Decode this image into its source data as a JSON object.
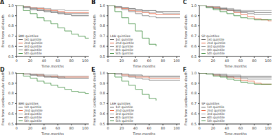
{
  "chart_data": [
    {
      "type": "line",
      "title": "A",
      "x_label": "Time,months",
      "y_label": "Free from all-death",
      "legend_title": "BMI quintiles",
      "legend": "lower left",
      "x": [
        0,
        10,
        20,
        30,
        40,
        50,
        60,
        70,
        80,
        90,
        100,
        105
      ],
      "xlim": [
        0,
        105
      ],
      "xticks": [
        0,
        20,
        40,
        60,
        80,
        100
      ],
      "ylim": [
        0.5,
        1.0
      ],
      "yticks": [
        0.5,
        0.6,
        0.7,
        0.8,
        0.9,
        {
          "value": 1.0,
          "label": "1.0"
        }
      ],
      "series": [
        {
          "name": "1st quintile",
          "color": "#555555",
          "values": [
            1,
            0.98,
            0.96,
            0.95,
            0.94,
            0.93,
            0.92,
            0.91,
            0.9,
            0.9,
            0.9,
            0.9
          ]
        },
        {
          "name": "2nd quintile",
          "color": "#e8603c",
          "values": [
            1,
            0.99,
            0.98,
            0.97,
            0.96,
            0.95,
            0.94,
            0.93,
            0.93,
            0.93,
            0.93,
            0.93
          ]
        },
        {
          "name": "3rd quintile",
          "color": "#a0a0a0",
          "values": [
            1,
            0.99,
            0.98,
            0.98,
            0.97,
            0.96,
            0.96,
            0.95,
            0.95,
            0.95,
            0.95,
            0.95
          ]
        },
        {
          "name": "4th quintile",
          "color": "#7a7a7a",
          "values": [
            1,
            0.98,
            0.97,
            0.96,
            0.95,
            0.94,
            0.93,
            0.92,
            0.92,
            0.92,
            0.92,
            0.92
          ]
        },
        {
          "name": "5th quintile",
          "color": "#3a8a3a",
          "values": [
            1,
            0.95,
            0.92,
            0.88,
            0.85,
            0.82,
            0.78,
            0.75,
            0.72,
            0.7,
            0.68,
            0.68
          ]
        }
      ]
    },
    {
      "type": "line",
      "title": "B",
      "x_label": "Time,months",
      "y_label": "Free from all-death",
      "legend_title": "LAH quintiles",
      "legend": "lower left",
      "x": [
        0,
        10,
        20,
        30,
        40,
        50,
        60,
        70,
        80,
        90,
        100,
        105
      ],
      "xlim": [
        0,
        105
      ],
      "xticks": [
        0,
        20,
        40,
        60,
        80,
        100
      ],
      "ylim": [
        0.5,
        1.0
      ],
      "yticks": [
        0.5,
        0.6,
        0.7,
        0.8,
        0.9,
        {
          "value": 1.0,
          "label": "1.0"
        }
      ],
      "series": [
        {
          "name": "1st quintile",
          "color": "#555555",
          "values": [
            1,
            0.99,
            0.98,
            0.97,
            0.96,
            0.95,
            0.95,
            0.94,
            0.94,
            0.94,
            0.94,
            0.94
          ]
        },
        {
          "name": "2nd quintile",
          "color": "#e8603c",
          "values": [
            1,
            0.98,
            0.97,
            0.95,
            0.94,
            0.93,
            0.92,
            0.91,
            0.91,
            0.91,
            0.91,
            0.91
          ]
        },
        {
          "name": "3rd quintile",
          "color": "#a0a0a0",
          "values": [
            1,
            0.99,
            0.98,
            0.96,
            0.95,
            0.94,
            0.93,
            0.93,
            0.92,
            0.92,
            0.92,
            0.92
          ]
        },
        {
          "name": "4th quintile",
          "color": "#7a7a7a",
          "values": [
            1,
            0.98,
            0.96,
            0.94,
            0.92,
            0.9,
            0.89,
            0.88,
            0.88,
            0.88,
            0.88,
            0.88
          ]
        },
        {
          "name": "5th quintile",
          "color": "#3a8a3a",
          "values": [
            1,
            0.94,
            0.88,
            0.82,
            0.75,
            0.68,
            0.62,
            0.6,
            null,
            null,
            null,
            null
          ]
        }
      ]
    },
    {
      "type": "line",
      "title": "C",
      "x_label": "Time,months",
      "y_label": "Free from all-death",
      "legend_title": "SP quintiles",
      "legend": "lower left",
      "x": [
        0,
        10,
        20,
        30,
        40,
        50,
        60,
        70,
        80,
        90,
        100,
        105
      ],
      "xlim": [
        0,
        105
      ],
      "xticks": [
        0,
        20,
        40,
        60,
        80,
        100
      ],
      "ylim": [
        0.5,
        1.0
      ],
      "yticks": [
        0.5,
        0.6,
        0.7,
        0.8,
        0.9,
        {
          "value": 1.0,
          "label": "1.0"
        }
      ],
      "series": [
        {
          "name": "1st quintile",
          "color": "#555555",
          "values": [
            1,
            0.99,
            0.98,
            0.97,
            0.96,
            0.95,
            0.94,
            0.94,
            0.93,
            0.93,
            0.93,
            0.93
          ]
        },
        {
          "name": "2nd quintile",
          "color": "#e8603c",
          "values": [
            1,
            0.99,
            0.98,
            0.96,
            0.95,
            0.93,
            0.91,
            0.89,
            0.87,
            0.86,
            0.85,
            0.85
          ]
        },
        {
          "name": "3rd quintile",
          "color": "#a0a0a0",
          "values": [
            1,
            0.99,
            0.99,
            0.98,
            0.97,
            0.96,
            0.95,
            0.95,
            0.95,
            0.95,
            0.95,
            0.95
          ]
        },
        {
          "name": "4th quintile",
          "color": "#7a7a7a",
          "values": [
            1,
            0.98,
            0.97,
            0.96,
            0.95,
            0.94,
            0.93,
            0.92,
            0.91,
            0.91,
            0.91,
            0.91
          ]
        },
        {
          "name": "5th quintile",
          "color": "#3a8a3a",
          "values": [
            1,
            0.98,
            0.96,
            0.94,
            0.92,
            0.9,
            0.88,
            0.87,
            0.86,
            0.86,
            0.86,
            0.86
          ]
        }
      ]
    },
    {
      "type": "line",
      "title": "D",
      "x_label": "Time,months",
      "y_label": "Free from cardiovascular death",
      "legend_title": "BMI quintiles",
      "legend": "lower left",
      "x": [
        0,
        10,
        20,
        30,
        40,
        50,
        60,
        70,
        80,
        90,
        100,
        105
      ],
      "xlim": [
        0,
        105
      ],
      "xticks": [
        0,
        20,
        40,
        60,
        80,
        100
      ],
      "ylim": [
        0.5,
        1.0
      ],
      "yticks": [
        0.5,
        0.6,
        0.7,
        0.8,
        0.9,
        {
          "value": 1.0,
          "label": "1.0"
        }
      ],
      "series": [
        {
          "name": "1st quintile",
          "color": "#555555",
          "values": [
            1,
            0.99,
            0.98,
            0.97,
            0.96,
            0.96,
            0.95,
            0.95,
            0.95,
            0.95,
            0.95,
            0.95
          ]
        },
        {
          "name": "2nd quintile",
          "color": "#e8603c",
          "values": [
            1,
            0.99,
            0.99,
            0.98,
            0.97,
            0.97,
            0.96,
            0.96,
            0.96,
            0.96,
            0.96,
            0.96
          ]
        },
        {
          "name": "3rd quintile",
          "color": "#a0a0a0",
          "values": [
            1,
            1,
            0.99,
            0.99,
            0.98,
            0.98,
            0.97,
            0.97,
            0.97,
            0.97,
            0.97,
            0.97
          ]
        },
        {
          "name": "4th quintile",
          "color": "#7a7a7a",
          "values": [
            1,
            0.99,
            0.98,
            0.98,
            0.97,
            0.96,
            0.96,
            0.95,
            0.95,
            0.95,
            0.95,
            0.95
          ]
        },
        {
          "name": "5th quintile",
          "color": "#3a8a3a",
          "values": [
            1,
            0.97,
            0.95,
            0.92,
            0.9,
            0.88,
            0.86,
            0.84,
            0.82,
            0.81,
            0.8,
            0.8
          ]
        }
      ]
    },
    {
      "type": "line",
      "title": "E",
      "x_label": "Time,months",
      "y_label": "Free from cardiovascular death",
      "legend_title": "LAH quintiles",
      "legend": "lower left",
      "x": [
        0,
        10,
        20,
        30,
        40,
        50,
        60,
        70,
        80,
        90,
        100,
        105
      ],
      "xlim": [
        0,
        105
      ],
      "xticks": [
        0,
        20,
        40,
        60,
        80,
        100
      ],
      "ylim": [
        0.5,
        1.0
      ],
      "yticks": [
        0.5,
        0.6,
        0.7,
        0.8,
        0.9,
        {
          "value": 1.0,
          "label": "1.0"
        }
      ],
      "series": [
        {
          "name": "1st quintile",
          "color": "#555555",
          "values": [
            1,
            1,
            0.99,
            0.98,
            0.98,
            0.97,
            0.97,
            0.97,
            0.97,
            0.97,
            0.97,
            0.97
          ]
        },
        {
          "name": "2nd quintile",
          "color": "#e8603c",
          "values": [
            1,
            0.99,
            0.98,
            0.97,
            0.96,
            0.96,
            0.95,
            0.95,
            0.95,
            0.95,
            0.95,
            0.95
          ]
        },
        {
          "name": "3rd quintile",
          "color": "#a0a0a0",
          "values": [
            1,
            0.99,
            0.99,
            0.98,
            0.97,
            0.97,
            0.96,
            0.96,
            0.96,
            0.96,
            0.96,
            0.96
          ]
        },
        {
          "name": "4th quintile",
          "color": "#7a7a7a",
          "values": [
            1,
            0.99,
            0.97,
            0.96,
            0.95,
            0.94,
            0.93,
            0.93,
            0.93,
            0.93,
            0.93,
            0.93
          ]
        },
        {
          "name": "5th quintile",
          "color": "#3a8a3a",
          "values": [
            1,
            0.96,
            0.92,
            0.88,
            0.84,
            0.79,
            0.75,
            0.73,
            null,
            null,
            null,
            null
          ]
        }
      ]
    },
    {
      "type": "line",
      "title": "F",
      "x_label": "Time,months",
      "y_label": "Free from cardiovascular death",
      "legend_title": "SP quintiles",
      "legend": "lower left",
      "x": [
        0,
        10,
        20,
        30,
        40,
        50,
        60,
        70,
        80,
        90,
        100,
        105
      ],
      "xlim": [
        0,
        105
      ],
      "xticks": [
        0,
        20,
        40,
        60,
        80,
        100
      ],
      "ylim": [
        0.5,
        1.0
      ],
      "yticks": [
        0.5,
        0.6,
        0.7,
        0.8,
        0.9,
        {
          "value": 1.0,
          "label": "1.0"
        }
      ],
      "series": [
        {
          "name": "1st quintile",
          "color": "#555555",
          "values": [
            1,
            0.99,
            0.99,
            0.98,
            0.97,
            0.97,
            0.96,
            0.96,
            0.96,
            0.96,
            0.96,
            0.96
          ]
        },
        {
          "name": "2nd quintile",
          "color": "#e8603c",
          "values": [
            1,
            0.99,
            0.98,
            0.97,
            0.96,
            0.95,
            0.93,
            0.92,
            0.9,
            0.89,
            0.89,
            0.89
          ]
        },
        {
          "name": "3rd quintile",
          "color": "#a0a0a0",
          "values": [
            1,
            1,
            0.99,
            0.99,
            0.98,
            0.98,
            0.97,
            0.97,
            0.97,
            0.97,
            0.97,
            0.97
          ]
        },
        {
          "name": "4th quintile",
          "color": "#7a7a7a",
          "values": [
            1,
            0.99,
            0.98,
            0.97,
            0.96,
            0.96,
            0.95,
            0.94,
            0.94,
            0.94,
            0.94,
            0.94
          ]
        },
        {
          "name": "5th quintile",
          "color": "#3a8a3a",
          "values": [
            1,
            0.99,
            0.97,
            0.96,
            0.94,
            0.93,
            0.91,
            0.9,
            0.89,
            0.89,
            0.89,
            0.89
          ]
        }
      ]
    }
  ]
}
